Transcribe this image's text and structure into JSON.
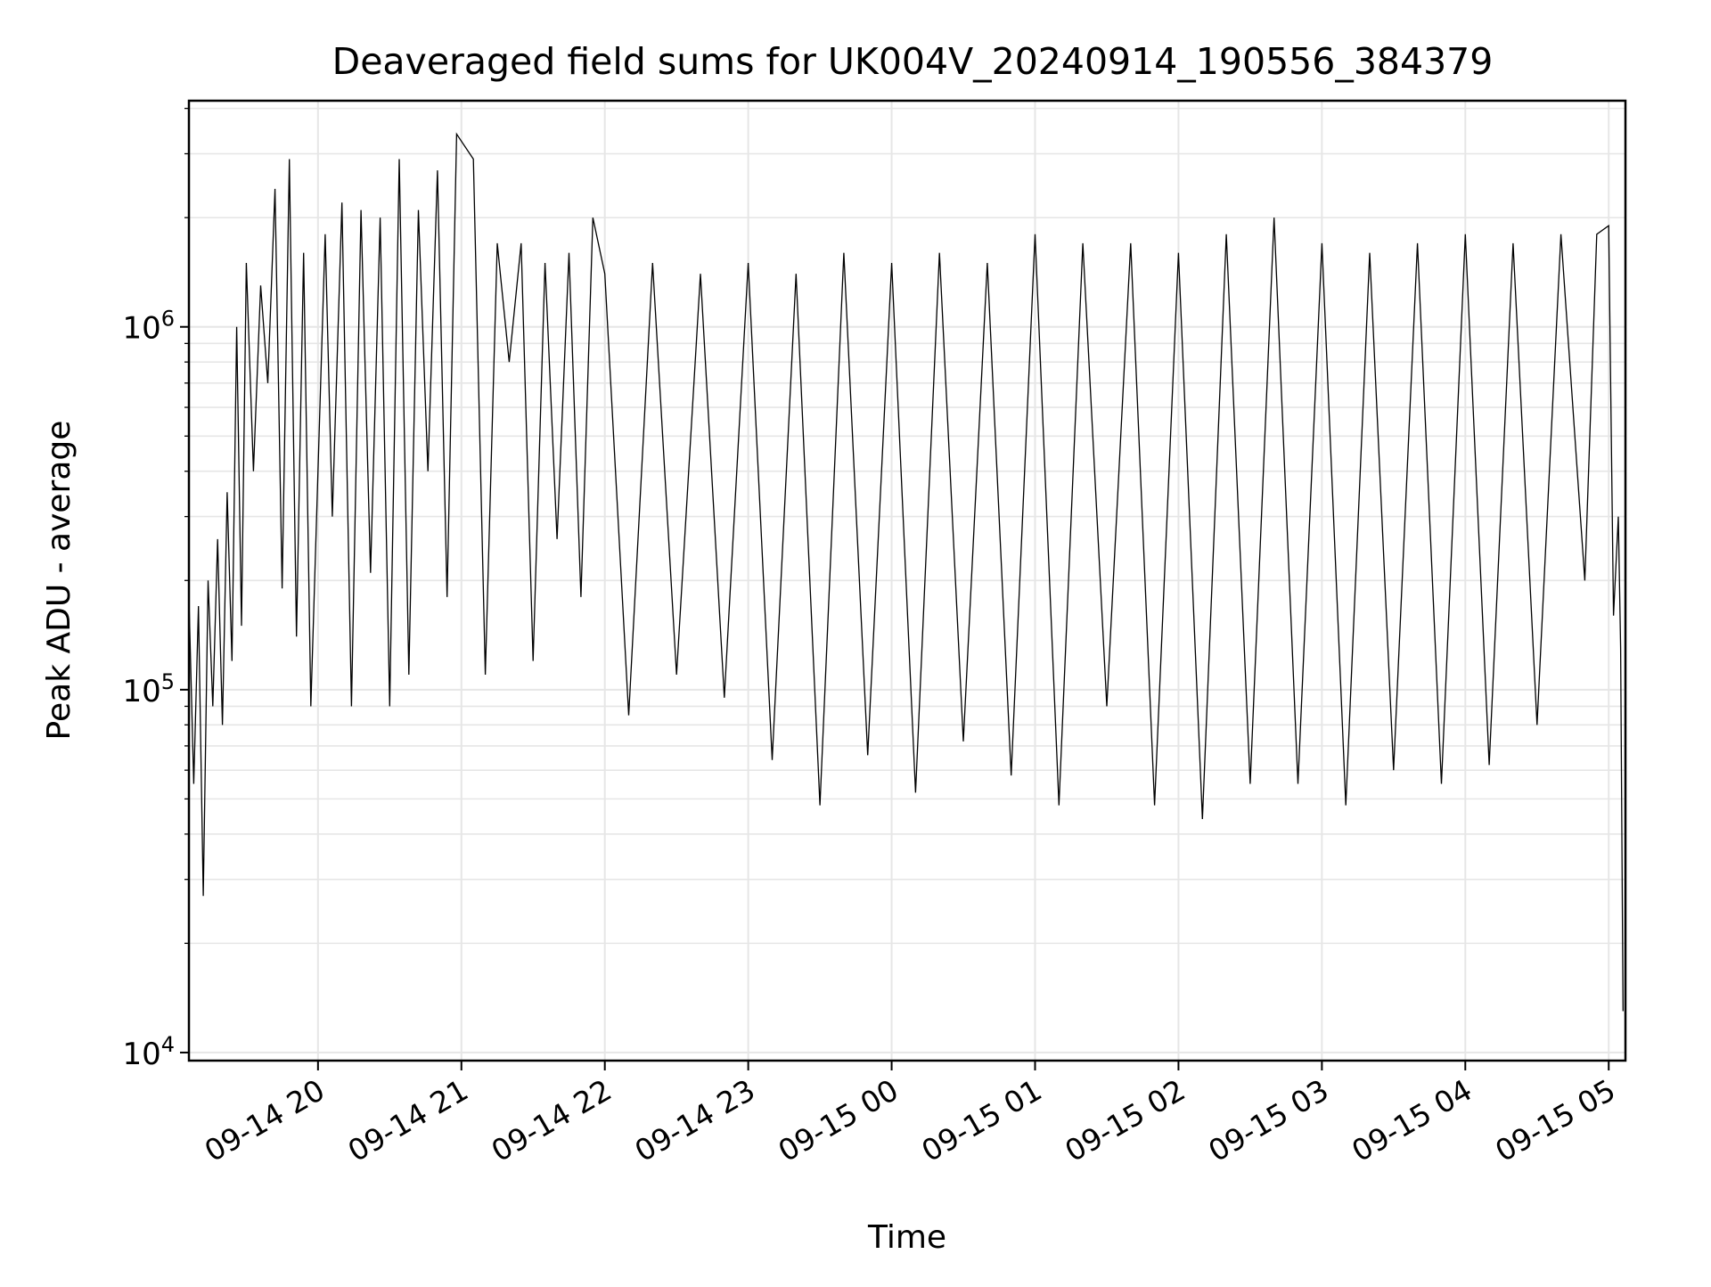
{
  "chart_data": {
    "type": "line",
    "title": "Deaveraged field sums for UK004V_20240914_190556_384379",
    "xlabel": "Time",
    "ylabel": "Peak ADU - average",
    "yscale": "log",
    "ylim": [
      9500,
      4200000
    ],
    "xlim": [
      "2024-09-14 19:06:00",
      "2024-09-15 05:07:00"
    ],
    "grid": "on (major and minor)",
    "line_color": "#000000",
    "grid_color": "#e6e6e6",
    "x_ticks": [
      {
        "t": "2024-09-14 20:00",
        "label": "09-14 20"
      },
      {
        "t": "2024-09-14 21:00",
        "label": "09-14 21"
      },
      {
        "t": "2024-09-14 22:00",
        "label": "09-14 22"
      },
      {
        "t": "2024-09-14 23:00",
        "label": "09-14 23"
      },
      {
        "t": "2024-09-15 00:00",
        "label": "09-15 00"
      },
      {
        "t": "2024-09-15 01:00",
        "label": "09-15 01"
      },
      {
        "t": "2024-09-15 02:00",
        "label": "09-15 02"
      },
      {
        "t": "2024-09-15 03:00",
        "label": "09-15 03"
      },
      {
        "t": "2024-09-15 04:00",
        "label": "09-15 04"
      },
      {
        "t": "2024-09-15 05:00",
        "label": "09-15 05"
      }
    ],
    "y_ticks": [
      {
        "value": 10000,
        "base": "10",
        "exp": "4"
      },
      {
        "value": 100000,
        "base": "10",
        "exp": "5"
      },
      {
        "value": 1000000,
        "base": "10",
        "exp": "6"
      }
    ],
    "series": [
      {
        "x": [
          "2024-09-14 19:06",
          "2024-09-14 19:08",
          "2024-09-14 19:10",
          "2024-09-14 19:12",
          "2024-09-14 19:14",
          "2024-09-14 19:16",
          "2024-09-14 19:18",
          "2024-09-14 19:20",
          "2024-09-14 19:22",
          "2024-09-14 19:24",
          "2024-09-14 19:26",
          "2024-09-14 19:28",
          "2024-09-14 19:30",
          "2024-09-14 19:33",
          "2024-09-14 19:36",
          "2024-09-14 19:39",
          "2024-09-14 19:42",
          "2024-09-14 19:45",
          "2024-09-14 19:48",
          "2024-09-14 19:51",
          "2024-09-14 19:54",
          "2024-09-14 19:57",
          "2024-09-14 20:03",
          "2024-09-14 20:06",
          "2024-09-14 20:10",
          "2024-09-14 20:14",
          "2024-09-14 20:18",
          "2024-09-14 20:22",
          "2024-09-14 20:26",
          "2024-09-14 20:30",
          "2024-09-14 20:34",
          "2024-09-14 20:38",
          "2024-09-14 20:42",
          "2024-09-14 20:46",
          "2024-09-14 20:50",
          "2024-09-14 20:54",
          "2024-09-14 20:58",
          "2024-09-14 21:05",
          "2024-09-14 21:10",
          "2024-09-14 21:15",
          "2024-09-14 21:20",
          "2024-09-14 21:25",
          "2024-09-14 21:30",
          "2024-09-14 21:35",
          "2024-09-14 21:40",
          "2024-09-14 21:45",
          "2024-09-14 21:50",
          "2024-09-14 21:55",
          "2024-09-14 22:00",
          "2024-09-14 22:10",
          "2024-09-14 22:20",
          "2024-09-14 22:30",
          "2024-09-14 22:40",
          "2024-09-14 22:50",
          "2024-09-14 23:00",
          "2024-09-14 23:10",
          "2024-09-14 23:20",
          "2024-09-14 23:30",
          "2024-09-14 23:40",
          "2024-09-14 23:50",
          "2024-09-15 00:00",
          "2024-09-15 00:10",
          "2024-09-15 00:20",
          "2024-09-15 00:30",
          "2024-09-15 00:40",
          "2024-09-15 00:50",
          "2024-09-15 01:00",
          "2024-09-15 01:10",
          "2024-09-15 01:20",
          "2024-09-15 01:30",
          "2024-09-15 01:40",
          "2024-09-15 01:50",
          "2024-09-15 02:00",
          "2024-09-15 02:10",
          "2024-09-15 02:20",
          "2024-09-15 02:30",
          "2024-09-15 02:40",
          "2024-09-15 02:50",
          "2024-09-15 03:00",
          "2024-09-15 03:10",
          "2024-09-15 03:20",
          "2024-09-15 03:30",
          "2024-09-15 03:40",
          "2024-09-15 03:50",
          "2024-09-15 04:00",
          "2024-09-15 04:10",
          "2024-09-15 04:20",
          "2024-09-15 04:30",
          "2024-09-15 04:40",
          "2024-09-15 04:50",
          "2024-09-15 04:55",
          "2024-09-15 05:00",
          "2024-09-15 05:02",
          "2024-09-15 05:04",
          "2024-09-15 05:05",
          "2024-09-15 05:06"
        ],
        "y": [
          180000,
          55000,
          170000,
          27000,
          200000,
          90000,
          260000,
          80000,
          350000,
          120000,
          1000000,
          150000,
          1500000,
          400000,
          1300000,
          700000,
          2400000,
          190000,
          2900000,
          140000,
          1600000,
          90000,
          1800000,
          300000,
          2200000,
          90000,
          2100000,
          210000,
          2000000,
          90000,
          2900000,
          110000,
          2100000,
          400000,
          2700000,
          180000,
          3400000,
          2900000,
          110000,
          1700000,
          800000,
          1700000,
          120000,
          1500000,
          260000,
          1600000,
          180000,
          2000000,
          1400000,
          85000,
          1500000,
          110000,
          1400000,
          95000,
          1500000,
          64000,
          1400000,
          48000,
          1600000,
          66000,
          1500000,
          52000,
          1600000,
          72000,
          1500000,
          58000,
          1800000,
          48000,
          1700000,
          90000,
          1700000,
          48000,
          1600000,
          44000,
          1800000,
          55000,
          2000000,
          55000,
          1700000,
          48000,
          1600000,
          60000,
          1700000,
          55000,
          1800000,
          62000,
          1700000,
          80000,
          1800000,
          200000,
          1800000,
          1900000,
          160000,
          300000,
          130000,
          13000
        ]
      }
    ]
  }
}
